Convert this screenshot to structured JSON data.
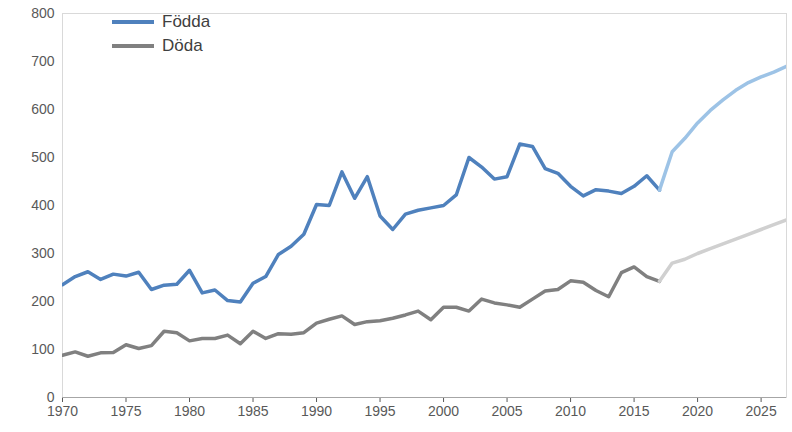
{
  "chart_data": {
    "type": "line",
    "x": [
      1970,
      1971,
      1972,
      1973,
      1974,
      1975,
      1976,
      1977,
      1978,
      1979,
      1980,
      1981,
      1982,
      1983,
      1984,
      1985,
      1986,
      1987,
      1988,
      1989,
      1990,
      1991,
      1992,
      1993,
      1994,
      1995,
      1996,
      1997,
      1998,
      1999,
      2000,
      2001,
      2002,
      2003,
      2004,
      2005,
      2006,
      2007,
      2008,
      2009,
      2010,
      2011,
      2012,
      2013,
      2014,
      2015,
      2016,
      2017,
      2018,
      2019,
      2020,
      2021,
      2022,
      2023,
      2024,
      2025,
      2026,
      2027
    ],
    "series": [
      {
        "name": "Födda",
        "color": "#4f81bd",
        "values": [
          235,
          252,
          262,
          246,
          257,
          253,
          261,
          225,
          234,
          236,
          265,
          218,
          224,
          202,
          199,
          238,
          252,
          298,
          315,
          340,
          402,
          400,
          470,
          415,
          460,
          378,
          350,
          382,
          390,
          395,
          400,
          422,
          500,
          480,
          455,
          460,
          528,
          523,
          477,
          467,
          440,
          420,
          433,
          430,
          425,
          440,
          462,
          432,
          null,
          null,
          null,
          null,
          null,
          null,
          null,
          null,
          null,
          null
        ]
      },
      {
        "name": "Födda",
        "color": "#9dc3e6",
        "values": [
          null,
          null,
          null,
          null,
          null,
          null,
          null,
          null,
          null,
          null,
          null,
          null,
          null,
          null,
          null,
          null,
          null,
          null,
          null,
          null,
          null,
          null,
          null,
          null,
          null,
          null,
          null,
          null,
          null,
          null,
          null,
          null,
          null,
          null,
          null,
          null,
          null,
          null,
          null,
          null,
          null,
          null,
          null,
          null,
          null,
          null,
          null,
          432,
          512,
          540,
          572,
          598,
          620,
          640,
          656,
          668,
          678,
          690
        ]
      },
      {
        "name": "Döda",
        "color": "#808080",
        "values": [
          88,
          95,
          86,
          93,
          94,
          110,
          102,
          108,
          138,
          135,
          118,
          123,
          123,
          130,
          112,
          138,
          123,
          133,
          132,
          135,
          155,
          163,
          170,
          152,
          158,
          160,
          165,
          172,
          180,
          162,
          188,
          188,
          180,
          205,
          197,
          193,
          188,
          205,
          222,
          225,
          243,
          240,
          223,
          210,
          260,
          272,
          252,
          242,
          null,
          null,
          null,
          null,
          null,
          null,
          null,
          null,
          null,
          null
        ]
      },
      {
        "name": "Döda",
        "color": "#d0d0d0",
        "values": [
          null,
          null,
          null,
          null,
          null,
          null,
          null,
          null,
          null,
          null,
          null,
          null,
          null,
          null,
          null,
          null,
          null,
          null,
          null,
          null,
          null,
          null,
          null,
          null,
          null,
          null,
          null,
          null,
          null,
          null,
          null,
          null,
          null,
          null,
          null,
          null,
          null,
          null,
          null,
          null,
          null,
          null,
          null,
          null,
          null,
          null,
          null,
          242,
          280,
          288,
          300,
          310,
          320,
          330,
          340,
          350,
          360,
          370
        ]
      }
    ],
    "xlim": [
      1970,
      2027
    ],
    "xticks": [
      1970,
      1975,
      1980,
      1985,
      1990,
      1995,
      2000,
      2005,
      2010,
      2015,
      2020,
      2025
    ],
    "ylim": [
      0,
      800
    ],
    "yticks": [
      0,
      100,
      200,
      300,
      400,
      500,
      600,
      700,
      800
    ],
    "grid": false,
    "legend": "top-left"
  }
}
